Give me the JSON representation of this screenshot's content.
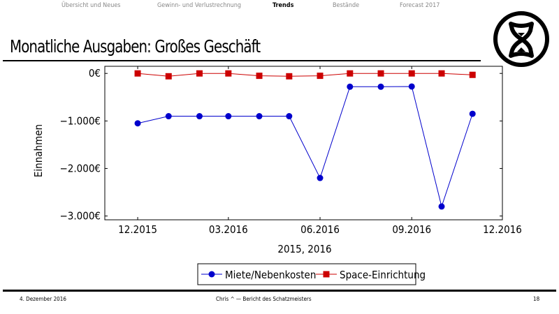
{
  "nav": {
    "items": [
      {
        "label": "Übersicht und Neues",
        "active": false
      },
      {
        "label": "Gewinn- und Verlustrechnung",
        "active": false
      },
      {
        "label": "Trends",
        "active": true
      },
      {
        "label": "Bestände",
        "active": false
      },
      {
        "label": "Forecast 2017",
        "active": false
      }
    ]
  },
  "slide": {
    "title": "Monatliche Ausgaben: Großes Geschäft",
    "logo_icon": "hourglass-circle-icon"
  },
  "footer": {
    "date": "4. Dezember 2016",
    "center": "Chris ^ — Bericht des Schatzmeisters",
    "page": "18"
  },
  "chart_data": {
    "type": "line",
    "title": "",
    "xlabel": "2015, 2016",
    "ylabel": "Einnahmen",
    "x": [
      "2015-12",
      "2016-01",
      "2016-02",
      "2016-03",
      "2016-04",
      "2016-05",
      "2016-06",
      "2016-07",
      "2016-08",
      "2016-09",
      "2016-10",
      "2016-11"
    ],
    "xticks": [
      {
        "date": "2015-12",
        "label": "12.2015"
      },
      {
        "date": "2016-03",
        "label": "03.2016"
      },
      {
        "date": "2016-06",
        "label": "06.2016"
      },
      {
        "date": "2016-09",
        "label": "09.2016"
      },
      {
        "date": "2016-12",
        "label": "12.2016"
      }
    ],
    "yticks": [
      {
        "value": 0,
        "label": "0€"
      },
      {
        "value": -1000,
        "label": "−1.000€"
      },
      {
        "value": -2000,
        "label": "−2.000€"
      },
      {
        "value": -3000,
        "label": "−3.000€"
      }
    ],
    "xlim": [
      "2015-10-29",
      "2016-12-01"
    ],
    "ylim": [
      -3080,
      150
    ],
    "grid": false,
    "legend_position": "bottom-center",
    "series": [
      {
        "name": "Miete/Nebenkosten",
        "color": "#0000cc",
        "marker": "circle",
        "values": [
          -1050,
          -900,
          -900,
          -900,
          -900,
          -900,
          -2200,
          -280,
          -280,
          -275,
          -2800,
          -850
        ]
      },
      {
        "name": "Space-Einrichtung",
        "color": "#cc0000",
        "marker": "square",
        "values": [
          0,
          -60,
          0,
          0,
          -50,
          -60,
          -50,
          0,
          0,
          0,
          0,
          -30
        ]
      }
    ]
  }
}
